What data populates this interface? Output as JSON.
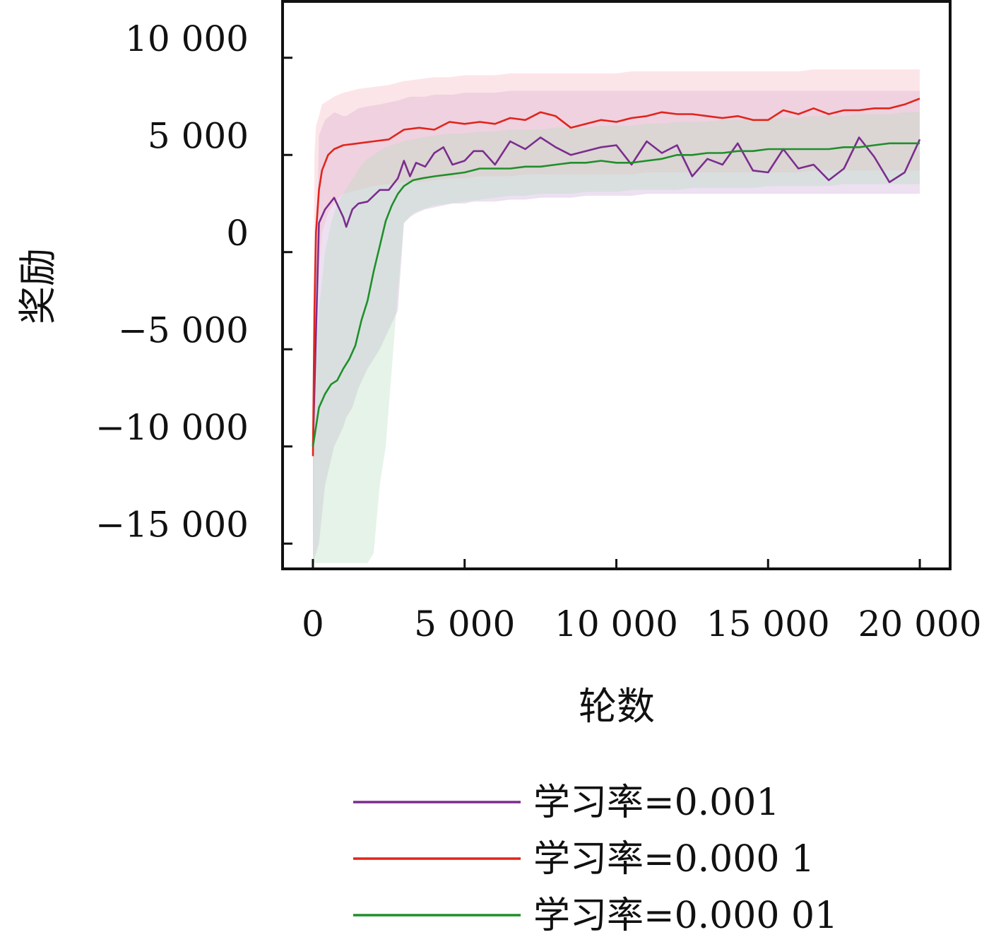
{
  "chart_data": {
    "type": "line",
    "title": "",
    "xlabel": "轮数",
    "ylabel": "奖励",
    "xlim": [
      -1000,
      21000
    ],
    "ylim": [
      -16300,
      12900
    ],
    "x_ticks": [
      0,
      5000,
      10000,
      15000,
      20000
    ],
    "x_tick_labels": [
      "0",
      "5 000",
      "10 000",
      "15 000",
      "20 000"
    ],
    "y_ticks": [
      10000,
      5000,
      0,
      -5000,
      -10000,
      -15000
    ],
    "y_tick_labels": [
      "10 000",
      "5 000",
      "0",
      "−5 000",
      "−10 000",
      "−15 000"
    ],
    "grid": false,
    "legend_position": "bottom",
    "series": [
      {
        "name": "学习率=0.001",
        "color": "#7b2d8e",
        "band_color": "#c9a6d6",
        "x": [
          0,
          200,
          400,
          700,
          1000,
          1100,
          1300,
          1500,
          1800,
          2200,
          2500,
          2800,
          3000,
          3200,
          3400,
          3700,
          4000,
          4300,
          4600,
          5000,
          5300,
          5600,
          6000,
          6500,
          7000,
          7500,
          8000,
          8500,
          9000,
          9500,
          10000,
          10500,
          11000,
          11500,
          12000,
          12500,
          13000,
          13500,
          14000,
          14500,
          15000,
          15500,
          16000,
          16500,
          17000,
          17500,
          18000,
          18500,
          19000,
          19500,
          20000
        ],
        "y": [
          -10000,
          1500,
          2200,
          2800,
          1800,
          1300,
          2200,
          2500,
          2600,
          3200,
          3200,
          3800,
          4700,
          3900,
          4600,
          4400,
          5100,
          5400,
          4500,
          4700,
          5200,
          5200,
          4500,
          5700,
          5300,
          5900,
          5400,
          5000,
          5200,
          5400,
          5500,
          4500,
          5700,
          5100,
          5500,
          3900,
          4800,
          4500,
          5600,
          4200,
          4100,
          5300,
          4300,
          4500,
          3700,
          4300,
          5900,
          4900,
          3600,
          4100,
          5800
        ],
        "band_low": [
          -16000,
          -15000,
          -12000,
          -10000,
          -9000,
          -8500,
          -8000,
          -7000,
          -6000,
          -5000,
          -4000,
          -3000,
          1500,
          1800,
          2000,
          2200,
          2300,
          2400,
          2500,
          2500,
          2600,
          2600,
          2600,
          2700,
          2700,
          2800,
          2800,
          2800,
          2900,
          2900,
          2900,
          2900,
          3000,
          3000,
          3000,
          3000,
          3000,
          3000,
          3000,
          3000,
          3000,
          3000,
          3000,
          3000,
          3000,
          3000,
          3000,
          3000,
          3000,
          3000,
          3000
        ],
        "band_high": [
          -9000,
          6000,
          6800,
          7200,
          7000,
          7000,
          7200,
          7400,
          7500,
          7600,
          7700,
          7800,
          7900,
          8000,
          8000,
          8000,
          8100,
          8100,
          8100,
          8200,
          8200,
          8200,
          8200,
          8300,
          8300,
          8300,
          8300,
          8300,
          8300,
          8300,
          8300,
          8300,
          8300,
          8300,
          8300,
          8300,
          8300,
          8300,
          8300,
          8300,
          8300,
          8300,
          8300,
          8300,
          8300,
          8300,
          8300,
          8300,
          8300,
          8300,
          8300
        ]
      },
      {
        "name": "学习率=0.000 1",
        "color": "#e0251b",
        "band_color": "#f7b5bf",
        "x": [
          0,
          50,
          100,
          200,
          300,
          500,
          700,
          1000,
          1500,
          2000,
          2500,
          3000,
          3500,
          4000,
          4500,
          5000,
          5500,
          6000,
          6500,
          7000,
          7500,
          8000,
          8500,
          9000,
          9500,
          10000,
          10500,
          11000,
          11500,
          12000,
          12500,
          13000,
          13500,
          14000,
          14500,
          15000,
          15500,
          16000,
          16500,
          17000,
          17500,
          18000,
          18500,
          19000,
          19500,
          20000
        ],
        "y": [
          -10500,
          -3000,
          1000,
          3200,
          4200,
          5000,
          5300,
          5500,
          5600,
          5700,
          5800,
          6300,
          6400,
          6300,
          6700,
          6600,
          6700,
          6600,
          6900,
          6800,
          7200,
          7000,
          6400,
          6600,
          6800,
          6700,
          6900,
          7000,
          7200,
          7100,
          7100,
          7000,
          6900,
          7000,
          6800,
          6800,
          7300,
          7100,
          7400,
          7100,
          7300,
          7300,
          7400,
          7400,
          7600,
          7900
        ],
        "band_low": [
          -16000,
          -8000,
          -4000,
          -1000,
          1000,
          2000,
          2500,
          3000,
          3200,
          3400,
          3500,
          3600,
          3600,
          3700,
          3800,
          3800,
          3900,
          3900,
          3900,
          4000,
          4000,
          4000,
          4000,
          4000,
          4000,
          4000,
          4000,
          4100,
          4100,
          4100,
          4100,
          4100,
          4100,
          4100,
          4100,
          4100,
          4100,
          4100,
          4200,
          4200,
          4200,
          4200,
          4200,
          4200,
          4200,
          4200
        ],
        "band_high": [
          -9000,
          5000,
          6500,
          7000,
          7600,
          7800,
          8000,
          8200,
          8400,
          8500,
          8600,
          8800,
          8900,
          9000,
          9000,
          9100,
          9100,
          9100,
          9200,
          9200,
          9200,
          9200,
          9200,
          9200,
          9200,
          9200,
          9300,
          9300,
          9300,
          9300,
          9300,
          9300,
          9300,
          9300,
          9300,
          9300,
          9300,
          9300,
          9400,
          9400,
          9400,
          9400,
          9400,
          9400,
          9400,
          9400
        ]
      },
      {
        "name": "学习率=0.000 01",
        "color": "#1f8f2a",
        "band_color": "#b8dcbc",
        "x": [
          0,
          200,
          400,
          600,
          800,
          1000,
          1200,
          1400,
          1600,
          1800,
          2000,
          2200,
          2400,
          2600,
          2800,
          3000,
          3300,
          3600,
          4000,
          4500,
          5000,
          5500,
          6000,
          6500,
          7000,
          7500,
          8000,
          8500,
          9000,
          9500,
          10000,
          10500,
          11000,
          11500,
          12000,
          12500,
          13000,
          13500,
          14000,
          14500,
          15000,
          15500,
          16000,
          16500,
          17000,
          17500,
          18000,
          18500,
          19000,
          19500,
          20000
        ],
        "y": [
          -10000,
          -8000,
          -7300,
          -6800,
          -6600,
          -6000,
          -5500,
          -4800,
          -3500,
          -2500,
          -1000,
          300,
          1600,
          2400,
          3000,
          3400,
          3700,
          3800,
          3900,
          4000,
          4100,
          4300,
          4300,
          4300,
          4400,
          4400,
          4500,
          4600,
          4600,
          4700,
          4600,
          4600,
          4700,
          4800,
          5000,
          5000,
          5100,
          5100,
          5200,
          5200,
          5300,
          5300,
          5300,
          5300,
          5300,
          5400,
          5400,
          5500,
          5600,
          5600,
          5600
        ],
        "band_low": [
          -16000,
          -16000,
          -16000,
          -16000,
          -16000,
          -16000,
          -16000,
          -16000,
          -16000,
          -16000,
          -15500,
          -12000,
          -10000,
          -6000,
          -2000,
          1500,
          2000,
          2200,
          2400,
          2500,
          2600,
          2700,
          2800,
          2900,
          2900,
          3000,
          3000,
          3000,
          3100,
          3100,
          3100,
          3200,
          3200,
          3200,
          3200,
          3300,
          3300,
          3300,
          3300,
          3300,
          3400,
          3400,
          3400,
          3400,
          3400,
          3500,
          3500,
          3500,
          3500,
          3500,
          3500
        ],
        "band_high": [
          -9000,
          -3000,
          0,
          1500,
          2500,
          3000,
          3500,
          4000,
          4500,
          4800,
          5000,
          5200,
          5400,
          5500,
          5600,
          5700,
          5800,
          5900,
          6000,
          6100,
          6100,
          6200,
          6200,
          6300,
          6300,
          6300,
          6400,
          6400,
          6400,
          6500,
          6500,
          6500,
          6600,
          6600,
          6700,
          6700,
          6700,
          6800,
          6800,
          6800,
          6900,
          6900,
          6900,
          7000,
          7000,
          7000,
          7100,
          7100,
          7100,
          7200,
          7200
        ]
      }
    ]
  }
}
